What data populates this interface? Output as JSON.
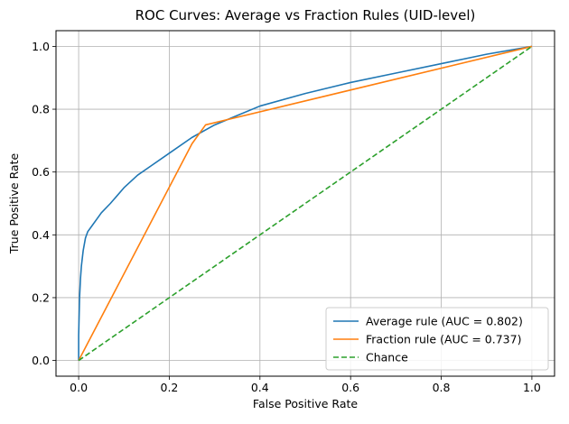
{
  "chart_data": {
    "type": "line",
    "title": "ROC Curves: Average vs Fraction Rules (UID-level)",
    "xlabel": "False Positive Rate",
    "ylabel": "True Positive Rate",
    "xlim": [
      -0.05,
      1.05
    ],
    "ylim": [
      -0.05,
      1.05
    ],
    "xticks": [
      "0.0",
      "0.2",
      "0.4",
      "0.6",
      "0.8",
      "1.0"
    ],
    "yticks": [
      "0.0",
      "0.2",
      "0.4",
      "0.6",
      "0.8",
      "1.0"
    ],
    "grid": true,
    "legend_position": "lower-right",
    "series": [
      {
        "name": "Average rule (AUC = 0.802)",
        "color": "#1f77b4",
        "style": "solid",
        "x": [
          0,
          0.0,
          0.002,
          0.004,
          0.006,
          0.01,
          0.015,
          0.02,
          0.03,
          0.04,
          0.05,
          0.07,
          0.1,
          0.13,
          0.16,
          0.2,
          0.25,
          0.3,
          0.35,
          0.4,
          0.5,
          0.6,
          0.7,
          0.8,
          0.9,
          1.0
        ],
        "y": [
          0,
          0.08,
          0.2,
          0.26,
          0.3,
          0.35,
          0.39,
          0.41,
          0.43,
          0.45,
          0.47,
          0.5,
          0.55,
          0.59,
          0.62,
          0.66,
          0.71,
          0.75,
          0.78,
          0.81,
          0.85,
          0.885,
          0.915,
          0.945,
          0.975,
          1.0
        ]
      },
      {
        "name": "Fraction rule (AUC = 0.737)",
        "color": "#ff7f0e",
        "style": "solid",
        "x": [
          0,
          0.25,
          0.28,
          1.0
        ],
        "y": [
          0,
          0.69,
          0.75,
          1.0
        ]
      },
      {
        "name": "Chance",
        "color": "#2ca02c",
        "style": "dashed",
        "x": [
          0,
          1
        ],
        "y": [
          0,
          1
        ]
      }
    ]
  }
}
